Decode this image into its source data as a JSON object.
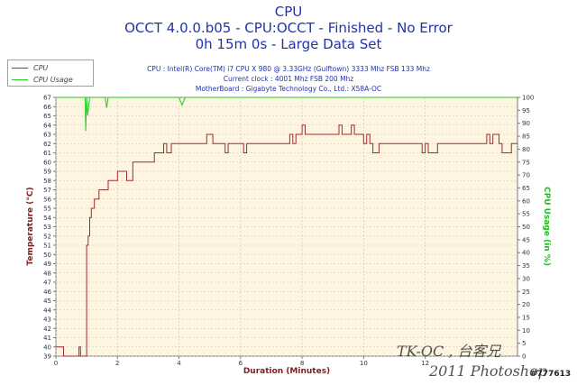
{
  "header": {
    "line1": "CPU",
    "line2": "OCCT 4.0.0.b05 - CPU:OCCT - Finished - No Error",
    "line3": "0h 15m 0s - Large Data Set"
  },
  "info": {
    "cpu": "CPU : Intel(R) Core(TM) i7 CPU X 980 @ 3.33GHz (Gulftown) 3333 Mhz FSB 133 Mhz",
    "clock": "Current clock : 4001 Mhz FSB 200 Mhz",
    "board": "MotherBoard : Gigabyte Technology Co., Ltd.: X58A-OC"
  },
  "legend": [
    {
      "label": "CPU",
      "color": "#a52a2a"
    },
    {
      "label": "CPU Usage",
      "color": "#22cc22"
    }
  ],
  "watermark": {
    "line1": "TK-OC , 台客兄",
    "line2": "2011 Photoshop",
    "tag": "#777613"
  },
  "chart_data": {
    "type": "line",
    "xlabel": "Duration (Minutes)",
    "ylabel": "Temperature (°C)",
    "y2label": "CPU Usage (in %)",
    "xlim": [
      0,
      15
    ],
    "ylim": [
      39,
      67
    ],
    "y2lim": [
      0,
      100
    ],
    "xticks": [
      0,
      2,
      4,
      6,
      8,
      10,
      12
    ],
    "yticks": [
      39,
      40,
      41,
      42,
      43,
      44,
      45,
      46,
      47,
      48,
      49,
      50,
      51,
      52,
      53,
      54,
      55,
      56,
      57,
      58,
      59,
      60,
      61,
      62,
      63,
      64,
      65,
      66,
      67
    ],
    "y2ticks": [
      0,
      5,
      10,
      15,
      20,
      25,
      30,
      35,
      40,
      45,
      50,
      55,
      60,
      65,
      70,
      75,
      80,
      85,
      90,
      95,
      100
    ],
    "grid": true,
    "series": [
      {
        "name": "CPU",
        "axis": "left",
        "color": "#a52a2a",
        "x": [
          0,
          0.25,
          0.25,
          0.75,
          0.75,
          0.8,
          0.8,
          1.0,
          1.0,
          1.05,
          1.05,
          1.1,
          1.1,
          1.15,
          1.15,
          1.25,
          1.25,
          1.4,
          1.4,
          1.7,
          1.7,
          2.0,
          2.0,
          2.3,
          2.3,
          2.5,
          2.5,
          2.9,
          2.9,
          3.2,
          3.2,
          3.5,
          3.5,
          3.6,
          3.6,
          3.75,
          3.75,
          4.0,
          4.0,
          4.9,
          4.9,
          5.0,
          5.0,
          5.1,
          5.1,
          5.4,
          5.4,
          5.5,
          5.5,
          5.6,
          5.6,
          6.1,
          6.1,
          6.2,
          6.2,
          7.6,
          7.6,
          7.7,
          7.7,
          7.8,
          7.8,
          8.0,
          8.0,
          8.1,
          8.1,
          8.4,
          8.4,
          9.2,
          9.2,
          9.3,
          9.3,
          9.6,
          9.6,
          9.7,
          9.7,
          10.0,
          10.0,
          10.1,
          10.1,
          10.2,
          10.2,
          10.3,
          10.3,
          10.5,
          10.5,
          10.6,
          10.6,
          11.9,
          11.9,
          12.0,
          12.0,
          12.1,
          12.1,
          12.4,
          12.4,
          12.5,
          12.5,
          14.0,
          14.0,
          14.1,
          14.1,
          14.2,
          14.2,
          14.4,
          14.4,
          14.5,
          14.5,
          14.8,
          14.8,
          15.0
        ],
        "y": [
          40,
          40,
          39,
          39,
          40,
          40,
          39,
          39,
          51,
          51,
          52,
          52,
          54,
          54,
          55,
          55,
          56,
          56,
          57,
          57,
          58,
          58,
          59,
          59,
          58,
          58,
          60,
          60,
          60,
          60,
          61,
          61,
          62,
          62,
          61,
          61,
          62,
          62,
          62,
          62,
          63,
          63,
          63,
          63,
          62,
          62,
          62,
          62,
          61,
          61,
          62,
          62,
          61,
          61,
          62,
          62,
          63,
          63,
          62,
          62,
          63,
          63,
          64,
          64,
          63,
          63,
          63,
          63,
          64,
          64,
          63,
          63,
          64,
          64,
          63,
          63,
          62,
          62,
          63,
          63,
          62,
          62,
          61,
          61,
          62,
          62,
          62,
          62,
          61,
          61,
          62,
          62,
          61,
          61,
          62,
          62,
          62,
          62,
          63,
          63,
          62,
          62,
          63,
          63,
          62,
          62,
          61,
          61,
          62,
          62
        ]
      },
      {
        "name": "CPU Usage",
        "axis": "right",
        "color": "#22cc22",
        "x": [
          0,
          0.95,
          0.97,
          1.0,
          1.03,
          1.1,
          1.6,
          1.65,
          1.7,
          4.0,
          4.1,
          4.2,
          15.0
        ],
        "y": [
          100,
          100,
          87,
          100,
          93,
          100,
          100,
          96,
          100,
          100,
          97,
          100,
          100
        ]
      }
    ]
  }
}
